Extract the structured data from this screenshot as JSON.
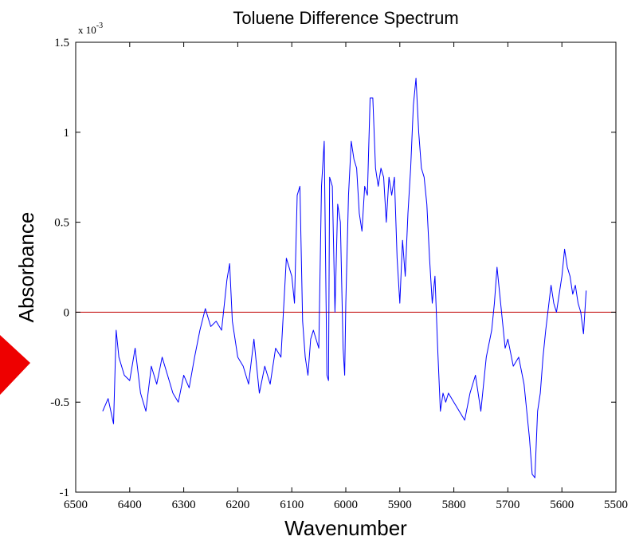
{
  "chart_data": {
    "type": "line",
    "title": "Toluene Difference Spectrum",
    "xlabel": "Wavenumber",
    "ylabel": "Absorbance",
    "y_multiplier_label": {
      "base": "x 10",
      "exponent": "-3"
    },
    "xlim": [
      6500,
      5500
    ],
    "x_reversed": true,
    "ylim": [
      -1.0,
      1.5
    ],
    "x_ticks": [
      6500,
      6400,
      6300,
      6200,
      6100,
      6000,
      5900,
      5800,
      5700,
      5600,
      5500
    ],
    "x_tick_labels": [
      "6500",
      "6400",
      "6300",
      "6200",
      "6100",
      "6000",
      "5900",
      "5800",
      "5700",
      "5600",
      "5500"
    ],
    "y_ticks": [
      -1.0,
      -0.5,
      0,
      0.5,
      1.0,
      1.5
    ],
    "y_tick_labels": [
      "-1",
      "-0.5",
      "0",
      "0.5",
      "1",
      "1.5"
    ],
    "grid": false,
    "reference_line": {
      "y": 0,
      "color": "#c00000"
    },
    "series": [
      {
        "color": "#0000ff",
        "x": [
          6450,
          6440,
          6430,
          6425,
          6420,
          6410,
          6400,
          6390,
          6380,
          6370,
          6360,
          6350,
          6340,
          6330,
          6320,
          6310,
          6300,
          6290,
          6280,
          6270,
          6260,
          6250,
          6240,
          6230,
          6220,
          6215,
          6210,
          6200,
          6190,
          6180,
          6170,
          6160,
          6150,
          6140,
          6130,
          6120,
          6110,
          6100,
          6095,
          6090,
          6085,
          6080,
          6075,
          6070,
          6065,
          6060,
          6050,
          6045,
          6040,
          6035,
          6032,
          6030,
          6025,
          6020,
          6015,
          6010,
          6005,
          6002,
          6000,
          5995,
          5990,
          5985,
          5980,
          5975,
          5970,
          5965,
          5960,
          5955,
          5950,
          5945,
          5940,
          5935,
          5930,
          5925,
          5920,
          5915,
          5910,
          5905,
          5900,
          5895,
          5890,
          5885,
          5880,
          5875,
          5870,
          5865,
          5860,
          5855,
          5850,
          5845,
          5840,
          5835,
          5830,
          5825,
          5820,
          5815,
          5810,
          5800,
          5790,
          5780,
          5770,
          5760,
          5750,
          5740,
          5730,
          5725,
          5720,
          5715,
          5710,
          5705,
          5700,
          5690,
          5680,
          5670,
          5665,
          5660,
          5655,
          5650,
          5645,
          5640,
          5635,
          5630,
          5620,
          5615,
          5610,
          5600,
          5595,
          5590,
          5585,
          5580,
          5575,
          5570,
          5565,
          5560,
          5555
        ],
        "y": [
          -0.55,
          -0.48,
          -0.62,
          -0.1,
          -0.25,
          -0.35,
          -0.38,
          -0.2,
          -0.45,
          -0.55,
          -0.3,
          -0.4,
          -0.25,
          -0.35,
          -0.45,
          -0.5,
          -0.35,
          -0.42,
          -0.25,
          -0.1,
          0.02,
          -0.08,
          -0.05,
          -0.1,
          0.18,
          0.27,
          -0.05,
          -0.25,
          -0.3,
          -0.4,
          -0.15,
          -0.45,
          -0.3,
          -0.4,
          -0.2,
          -0.25,
          0.3,
          0.2,
          0.05,
          0.65,
          0.7,
          -0.05,
          -0.25,
          -0.35,
          -0.15,
          -0.1,
          -0.2,
          0.7,
          0.95,
          -0.35,
          -0.38,
          0.75,
          0.7,
          0.0,
          0.6,
          0.5,
          -0.2,
          -0.35,
          0.05,
          0.65,
          0.95,
          0.85,
          0.8,
          0.55,
          0.45,
          0.7,
          0.65,
          1.19,
          1.19,
          0.8,
          0.7,
          0.8,
          0.75,
          0.5,
          0.75,
          0.65,
          0.75,
          0.3,
          0.05,
          0.4,
          0.2,
          0.55,
          0.8,
          1.15,
          1.3,
          1.0,
          0.8,
          0.75,
          0.6,
          0.3,
          0.05,
          0.2,
          -0.2,
          -0.55,
          -0.45,
          -0.5,
          -0.45,
          -0.5,
          -0.55,
          -0.6,
          -0.45,
          -0.35,
          -0.55,
          -0.25,
          -0.1,
          0.05,
          0.25,
          0.1,
          -0.05,
          -0.2,
          -0.15,
          -0.3,
          -0.25,
          -0.4,
          -0.55,
          -0.7,
          -0.9,
          -0.92,
          -0.55,
          -0.45,
          -0.25,
          -0.1,
          0.15,
          0.05,
          0.0,
          0.2,
          0.35,
          0.25,
          0.2,
          0.1,
          0.15,
          0.05,
          0.0,
          -0.12,
          0.12
        ]
      }
    ]
  }
}
